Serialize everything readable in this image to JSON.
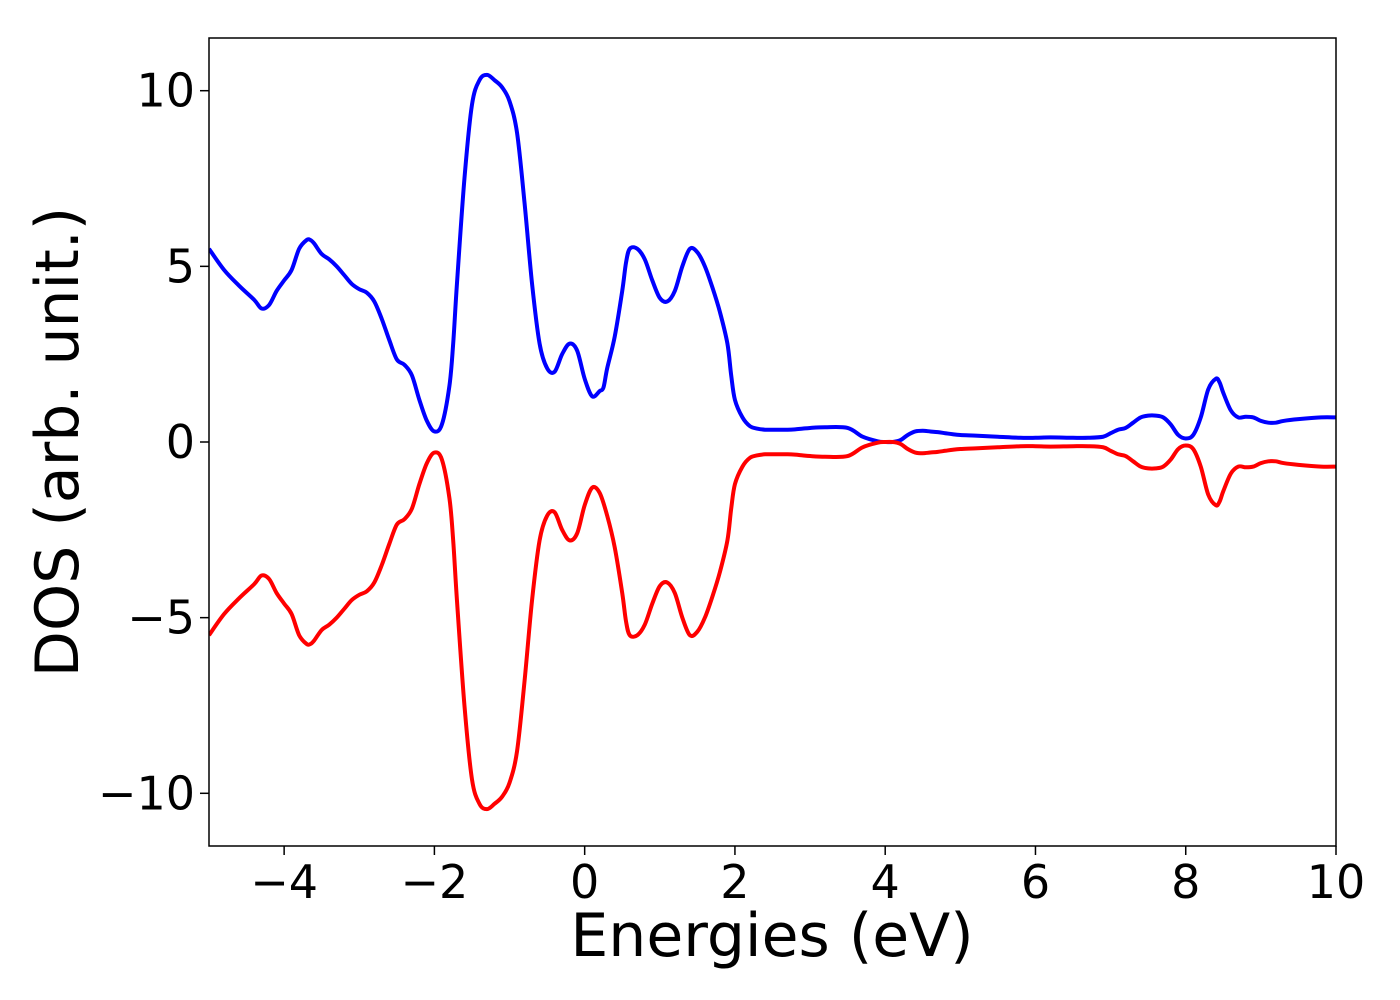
{
  "chart_data": {
    "type": "line",
    "title": "",
    "xlabel": "Energies (eV)",
    "ylabel": "DOS (arb. unit.)",
    "xlim": [
      -5,
      10
    ],
    "ylim": [
      -11.5,
      11.5
    ],
    "grid": false,
    "legend": "none",
    "xticks": [
      -4,
      -2,
      0,
      2,
      4,
      6,
      8,
      10
    ],
    "xtick_labels": [
      "−4",
      "−2",
      "0",
      "2",
      "4",
      "6",
      "8",
      "10"
    ],
    "yticks": [
      -10,
      -5,
      0,
      5,
      10
    ],
    "ytick_labels": [
      "−10",
      "−5",
      "0",
      "5",
      "10"
    ],
    "series": [
      {
        "color": "#0000ff",
        "x": [
          -5.0,
          -4.8,
          -4.6,
          -4.4,
          -4.3,
          -4.2,
          -4.1,
          -4.0,
          -3.9,
          -3.8,
          -3.7,
          -3.65,
          -3.6,
          -3.5,
          -3.4,
          -3.3,
          -3.2,
          -3.1,
          -3.0,
          -2.9,
          -2.8,
          -2.7,
          -2.6,
          -2.5,
          -2.4,
          -2.3,
          -2.2,
          -2.1,
          -2.0,
          -1.9,
          -1.8,
          -1.75,
          -1.7,
          -1.6,
          -1.5,
          -1.4,
          -1.3,
          -1.2,
          -1.1,
          -1.0,
          -0.9,
          -0.8,
          -0.7,
          -0.6,
          -0.5,
          -0.4,
          -0.3,
          -0.2,
          -0.1,
          0.0,
          0.1,
          0.2,
          0.25,
          0.3,
          0.4,
          0.5,
          0.55,
          0.6,
          0.7,
          0.8,
          0.9,
          1.0,
          1.1,
          1.2,
          1.3,
          1.4,
          1.5,
          1.6,
          1.7,
          1.8,
          1.9,
          1.95,
          2.0,
          2.1,
          2.2,
          2.3,
          2.4,
          2.5,
          2.6,
          2.7,
          2.8,
          2.9,
          3.0,
          3.2,
          3.5,
          3.7,
          3.9,
          4.0,
          4.1,
          4.2,
          4.3,
          4.4,
          4.5,
          4.6,
          4.7,
          4.8,
          4.9,
          5.0,
          5.2,
          5.5,
          5.8,
          6.0,
          6.2,
          6.5,
          6.7,
          6.9,
          7.0,
          7.1,
          7.2,
          7.3,
          7.4,
          7.5,
          7.6,
          7.7,
          7.8,
          7.9,
          8.0,
          8.1,
          8.2,
          8.3,
          8.4,
          8.45,
          8.5,
          8.6,
          8.7,
          8.8,
          8.9,
          9.0,
          9.1,
          9.2,
          9.3,
          9.5,
          9.8,
          10.0
        ],
        "y": [
          5.5,
          4.9,
          4.45,
          4.05,
          3.8,
          3.9,
          4.3,
          4.6,
          4.9,
          5.5,
          5.75,
          5.75,
          5.65,
          5.35,
          5.2,
          5.0,
          4.75,
          4.5,
          4.35,
          4.25,
          4.0,
          3.5,
          2.9,
          2.35,
          2.2,
          1.9,
          1.2,
          0.6,
          0.3,
          0.5,
          1.6,
          2.8,
          4.5,
          7.5,
          9.6,
          10.3,
          10.45,
          10.3,
          10.1,
          9.7,
          8.8,
          6.8,
          4.5,
          2.8,
          2.1,
          2.0,
          2.5,
          2.8,
          2.6,
          1.8,
          1.3,
          1.45,
          1.55,
          2.1,
          3.0,
          4.3,
          5.1,
          5.5,
          5.5,
          5.2,
          4.6,
          4.1,
          4.0,
          4.3,
          5.0,
          5.5,
          5.4,
          5.0,
          4.4,
          3.7,
          2.8,
          1.9,
          1.2,
          0.7,
          0.45,
          0.38,
          0.35,
          0.35,
          0.35,
          0.35,
          0.36,
          0.38,
          0.4,
          0.42,
          0.4,
          0.15,
          0.02,
          0.0,
          0.0,
          0.05,
          0.2,
          0.3,
          0.32,
          0.3,
          0.28,
          0.25,
          0.22,
          0.2,
          0.18,
          0.15,
          0.12,
          0.12,
          0.13,
          0.12,
          0.12,
          0.15,
          0.25,
          0.35,
          0.4,
          0.55,
          0.7,
          0.75,
          0.75,
          0.7,
          0.5,
          0.2,
          0.1,
          0.2,
          0.7,
          1.5,
          1.8,
          1.7,
          1.4,
          0.9,
          0.7,
          0.72,
          0.7,
          0.6,
          0.55,
          0.55,
          0.6,
          0.65,
          0.7,
          0.7
        ]
      },
      {
        "color": "#ff0000",
        "x": [
          -5.0,
          -4.8,
          -4.6,
          -4.4,
          -4.3,
          -4.2,
          -4.1,
          -4.0,
          -3.9,
          -3.8,
          -3.7,
          -3.65,
          -3.6,
          -3.5,
          -3.4,
          -3.3,
          -3.2,
          -3.1,
          -3.0,
          -2.9,
          -2.8,
          -2.7,
          -2.6,
          -2.5,
          -2.4,
          -2.3,
          -2.2,
          -2.1,
          -2.0,
          -1.9,
          -1.8,
          -1.75,
          -1.7,
          -1.6,
          -1.5,
          -1.4,
          -1.3,
          -1.2,
          -1.1,
          -1.0,
          -0.9,
          -0.8,
          -0.7,
          -0.6,
          -0.5,
          -0.4,
          -0.3,
          -0.2,
          -0.1,
          0.0,
          0.1,
          0.2,
          0.3,
          0.4,
          0.5,
          0.55,
          0.6,
          0.7,
          0.8,
          0.9,
          1.0,
          1.1,
          1.2,
          1.3,
          1.4,
          1.5,
          1.6,
          1.7,
          1.8,
          1.9,
          1.95,
          2.0,
          2.1,
          2.2,
          2.3,
          2.4,
          2.5,
          2.6,
          2.7,
          2.8,
          2.9,
          3.0,
          3.2,
          3.5,
          3.7,
          3.9,
          4.0,
          4.1,
          4.2,
          4.3,
          4.4,
          4.5,
          4.6,
          4.7,
          4.8,
          4.9,
          5.0,
          5.2,
          5.5,
          5.8,
          6.0,
          6.2,
          6.5,
          6.7,
          6.9,
          7.0,
          7.1,
          7.2,
          7.3,
          7.4,
          7.5,
          7.6,
          7.7,
          7.8,
          7.9,
          8.0,
          8.1,
          8.2,
          8.3,
          8.4,
          8.45,
          8.5,
          8.6,
          8.7,
          8.8,
          8.9,
          9.0,
          9.1,
          9.2,
          9.3,
          9.5,
          9.8,
          10.0
        ],
        "y": [
          -5.5,
          -4.9,
          -4.45,
          -4.05,
          -3.8,
          -3.9,
          -4.3,
          -4.6,
          -4.9,
          -5.5,
          -5.75,
          -5.75,
          -5.65,
          -5.35,
          -5.2,
          -5.0,
          -4.75,
          -4.5,
          -4.35,
          -4.25,
          -4.0,
          -3.5,
          -2.9,
          -2.35,
          -2.2,
          -1.9,
          -1.2,
          -0.6,
          -0.3,
          -0.5,
          -1.6,
          -2.8,
          -4.5,
          -7.5,
          -9.6,
          -10.3,
          -10.45,
          -10.3,
          -10.1,
          -9.7,
          -8.8,
          -6.8,
          -4.5,
          -2.8,
          -2.1,
          -2.0,
          -2.5,
          -2.8,
          -2.6,
          -1.8,
          -1.3,
          -1.45,
          -2.1,
          -3.0,
          -4.3,
          -5.1,
          -5.5,
          -5.5,
          -5.2,
          -4.6,
          -4.1,
          -4.0,
          -4.3,
          -5.0,
          -5.5,
          -5.4,
          -5.0,
          -4.4,
          -3.7,
          -2.8,
          -1.9,
          -1.2,
          -0.7,
          -0.45,
          -0.38,
          -0.35,
          -0.35,
          -0.35,
          -0.35,
          -0.36,
          -0.38,
          -0.4,
          -0.42,
          -0.4,
          -0.15,
          -0.02,
          -0.0,
          -0.0,
          -0.05,
          -0.2,
          -0.3,
          -0.32,
          -0.3,
          -0.28,
          -0.25,
          -0.22,
          -0.2,
          -0.18,
          -0.15,
          -0.12,
          -0.12,
          -0.13,
          -0.12,
          -0.12,
          -0.15,
          -0.25,
          -0.35,
          -0.4,
          -0.55,
          -0.7,
          -0.75,
          -0.75,
          -0.7,
          -0.5,
          -0.2,
          -0.1,
          -0.2,
          -0.7,
          -1.5,
          -1.8,
          -1.7,
          -1.4,
          -0.9,
          -0.7,
          -0.72,
          -0.7,
          -0.6,
          -0.55,
          -0.55,
          -0.6,
          -0.65,
          -0.7,
          -0.7
        ]
      }
    ]
  }
}
